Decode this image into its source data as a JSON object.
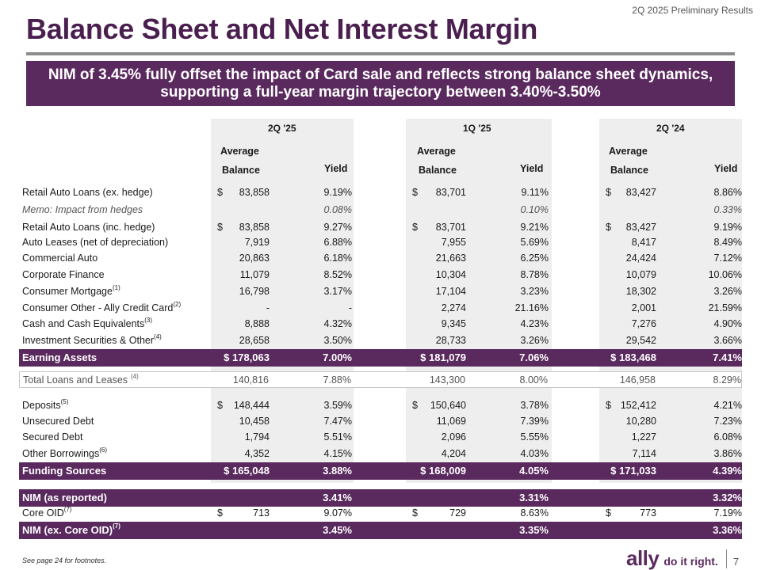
{
  "header_tag": "2Q 2025 Preliminary Results",
  "title": "Balance Sheet and Net Interest Margin",
  "banner": "NIM of 3.45% fully offset the impact of Card sale and reflects strong balance sheet dynamics, supporting a full-year margin trajectory between 3.40%-3.50%",
  "groups": [
    "2Q '25",
    "1Q '25",
    "2Q '24"
  ],
  "col_avg_top": "Average",
  "col_avg_bottom": "Balance",
  "col_yield": "Yield",
  "rows": {
    "retail_auto_ex": {
      "label": "Retail Auto Loans (ex. hedge)",
      "cur": "$",
      "c": [
        [
          "83,858",
          "9.19%"
        ],
        [
          "83,701",
          "9.11%"
        ],
        [
          "83,427",
          "8.86%"
        ]
      ]
    },
    "memo_hedges": {
      "label": "Memo: Impact from hedges",
      "c": [
        [
          "",
          "0.08%"
        ],
        [
          "",
          "0.10%"
        ],
        [
          "",
          "0.33%"
        ]
      ]
    },
    "retail_auto_inc": {
      "label": "Retail Auto Loans (inc. hedge)",
      "cur": "$",
      "c": [
        [
          "83,858",
          "9.27%"
        ],
        [
          "83,701",
          "9.21%"
        ],
        [
          "83,427",
          "9.19%"
        ]
      ]
    },
    "auto_leases": {
      "label": "Auto Leases (net of depreciation)",
      "c": [
        [
          "7,919",
          "6.88%"
        ],
        [
          "7,955",
          "5.69%"
        ],
        [
          "8,417",
          "8.49%"
        ]
      ]
    },
    "commercial_auto": {
      "label": "Commercial Auto",
      "c": [
        [
          "20,863",
          "6.18%"
        ],
        [
          "21,663",
          "6.25%"
        ],
        [
          "24,424",
          "7.12%"
        ]
      ]
    },
    "corporate_finance": {
      "label": "Corporate Finance",
      "c": [
        [
          "11,079",
          "8.52%"
        ],
        [
          "10,304",
          "8.78%"
        ],
        [
          "10,079",
          "10.06%"
        ]
      ]
    },
    "consumer_mortgage": {
      "label": "Consumer Mortgage",
      "sup": "(1)",
      "c": [
        [
          "16,798",
          "3.17%"
        ],
        [
          "17,104",
          "3.23%"
        ],
        [
          "18,302",
          "3.26%"
        ]
      ]
    },
    "consumer_other": {
      "label": "Consumer Other - Ally Credit Card",
      "sup": "(2)",
      "c": [
        [
          "-",
          "-"
        ],
        [
          "2,274",
          "21.16%"
        ],
        [
          "2,001",
          "21.59%"
        ]
      ]
    },
    "cash": {
      "label": "Cash and Cash Equivalents",
      "sup": "(3)",
      "c": [
        [
          "8,888",
          "4.32%"
        ],
        [
          "9,345",
          "4.23%"
        ],
        [
          "7,276",
          "4.90%"
        ]
      ]
    },
    "investment": {
      "label": "Investment Securities & Other",
      "sup": "(4)",
      "c": [
        [
          "28,658",
          "3.50%"
        ],
        [
          "28,733",
          "3.26%"
        ],
        [
          "29,542",
          "3.66%"
        ]
      ]
    },
    "earning_assets": {
      "label": "Earning Assets",
      "c": [
        [
          "$ 178,063",
          "7.00%"
        ],
        [
          "$ 181,079",
          "7.06%"
        ],
        [
          "$ 183,468",
          "7.41%"
        ]
      ]
    },
    "total_loans": {
      "label": "Total Loans and Leases",
      "sup": "(4)",
      "c": [
        [
          "140,816",
          "7.88%"
        ],
        [
          "143,300",
          "8.00%"
        ],
        [
          "146,958",
          "8.29%"
        ]
      ]
    },
    "deposits": {
      "label": "Deposits",
      "sup": "(5)",
      "cur": "$",
      "c": [
        [
          "148,444",
          "3.59%"
        ],
        [
          "150,640",
          "3.78%"
        ],
        [
          "152,412",
          "4.21%"
        ]
      ]
    },
    "unsecured_debt": {
      "label": "Unsecured Debt",
      "c": [
        [
          "10,458",
          "7.47%"
        ],
        [
          "11,069",
          "7.39%"
        ],
        [
          "10,280",
          "7.23%"
        ]
      ]
    },
    "secured_debt": {
      "label": "Secured Debt",
      "c": [
        [
          "1,794",
          "5.51%"
        ],
        [
          "2,096",
          "5.55%"
        ],
        [
          "1,227",
          "6.08%"
        ]
      ]
    },
    "other_borrowings": {
      "label": "Other Borrowings",
      "sup": "(6)",
      "c": [
        [
          "4,352",
          "4.15%"
        ],
        [
          "4,204",
          "4.03%"
        ],
        [
          "7,114",
          "3.86%"
        ]
      ]
    },
    "funding_sources": {
      "label": "Funding Sources",
      "c": [
        [
          "$ 165,048",
          "3.88%"
        ],
        [
          "$ 168,009",
          "4.05%"
        ],
        [
          "$ 171,033",
          "4.39%"
        ]
      ]
    },
    "nim_reported": {
      "label": "NIM (as reported)",
      "c": [
        [
          "",
          "3.41%"
        ],
        [
          "",
          "3.31%"
        ],
        [
          "",
          "3.32%"
        ]
      ]
    },
    "core_oid": {
      "label": "Core OID",
      "sup": "(7)",
      "cur": "$",
      "c": [
        [
          "713",
          "9.07%"
        ],
        [
          "729",
          "8.63%"
        ],
        [
          "773",
          "7.19%"
        ]
      ]
    },
    "nim_ex_oid": {
      "label": "NIM (ex. Core OID)",
      "sup": "(7)",
      "c": [
        [
          "",
          "3.45%"
        ],
        [
          "",
          "3.35%"
        ],
        [
          "",
          "3.36%"
        ]
      ]
    }
  },
  "footnote": "See page 24 for footnotes.",
  "logo": {
    "brand": "ally",
    "tagline": "do it right.",
    "page": "7"
  },
  "colors": {
    "brand_purple": "#5a2a5f",
    "title_purple": "#4a1f4f",
    "column_shade": "#eeeeee"
  }
}
